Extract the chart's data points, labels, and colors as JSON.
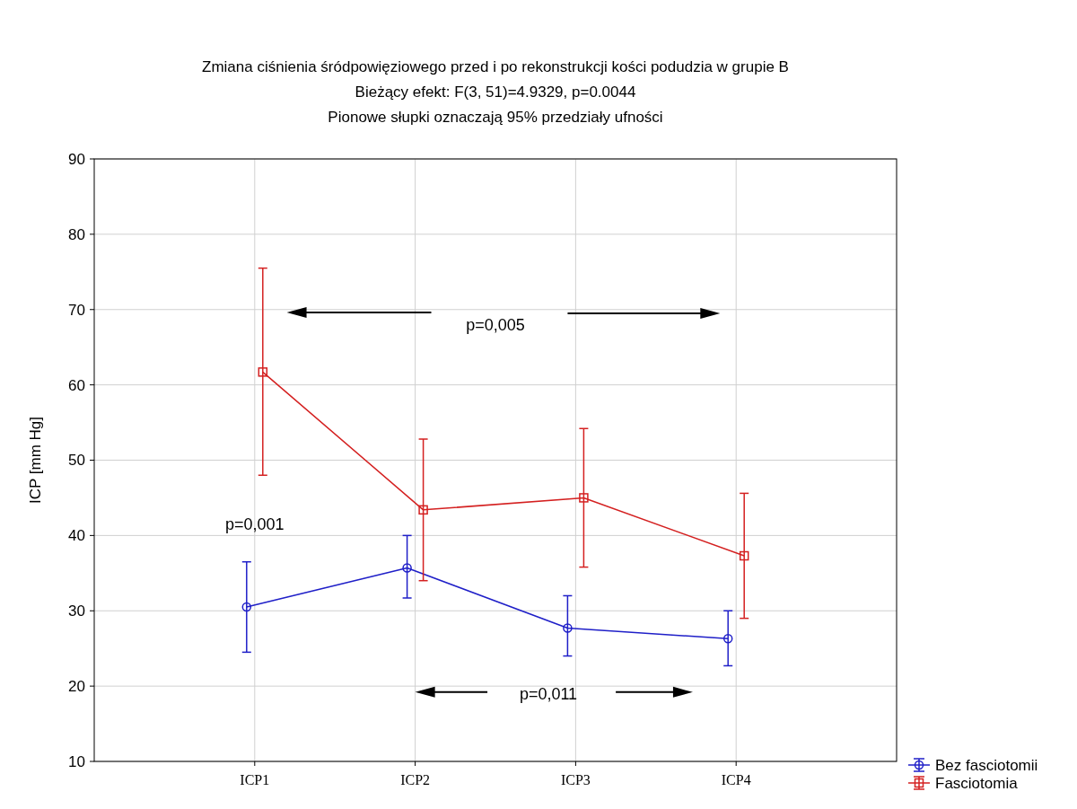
{
  "chart_data": {
    "type": "line",
    "title": "Zmiana ciśnienia śródpowięziowego przed i po rekonstrukcji kości podudzia w grupie B",
    "subtitle": "Bieżący efekt: F(3, 51)=4.9329, p=0.0044\nPionowe słupki oznaczają 95% przedziały ufności",
    "ylabel": "ICP [mm Hg]",
    "categories": [
      "ICP1",
      "ICP2",
      "ICP3",
      "ICP4"
    ],
    "series": [
      {
        "name": "Bez fasciotomii",
        "color": "#1f1fc8",
        "marker": "circle",
        "values": [
          30.5,
          35.7,
          27.7,
          26.3
        ],
        "errors": [
          [
            24.5,
            36.5
          ],
          [
            31.7,
            40
          ],
          [
            24,
            32
          ],
          [
            22.7,
            30
          ]
        ]
      },
      {
        "name": "Fasciotomia",
        "color": "#d42020",
        "marker": "square",
        "values": [
          61.7,
          43.4,
          45,
          37.3
        ],
        "errors": [
          [
            48,
            75.5
          ],
          [
            34,
            52.8
          ],
          [
            35.8,
            54.2
          ],
          [
            29,
            45.6
          ]
        ]
      }
    ],
    "ylim": [
      10,
      90
    ],
    "yticks": [
      10,
      20,
      30,
      40,
      50,
      60,
      70,
      80,
      90
    ],
    "grid": true,
    "legend": "bottom right",
    "line_style": "solid",
    "annotations": [
      "p=0,005",
      "p=0,001",
      "p=0,011"
    ]
  }
}
